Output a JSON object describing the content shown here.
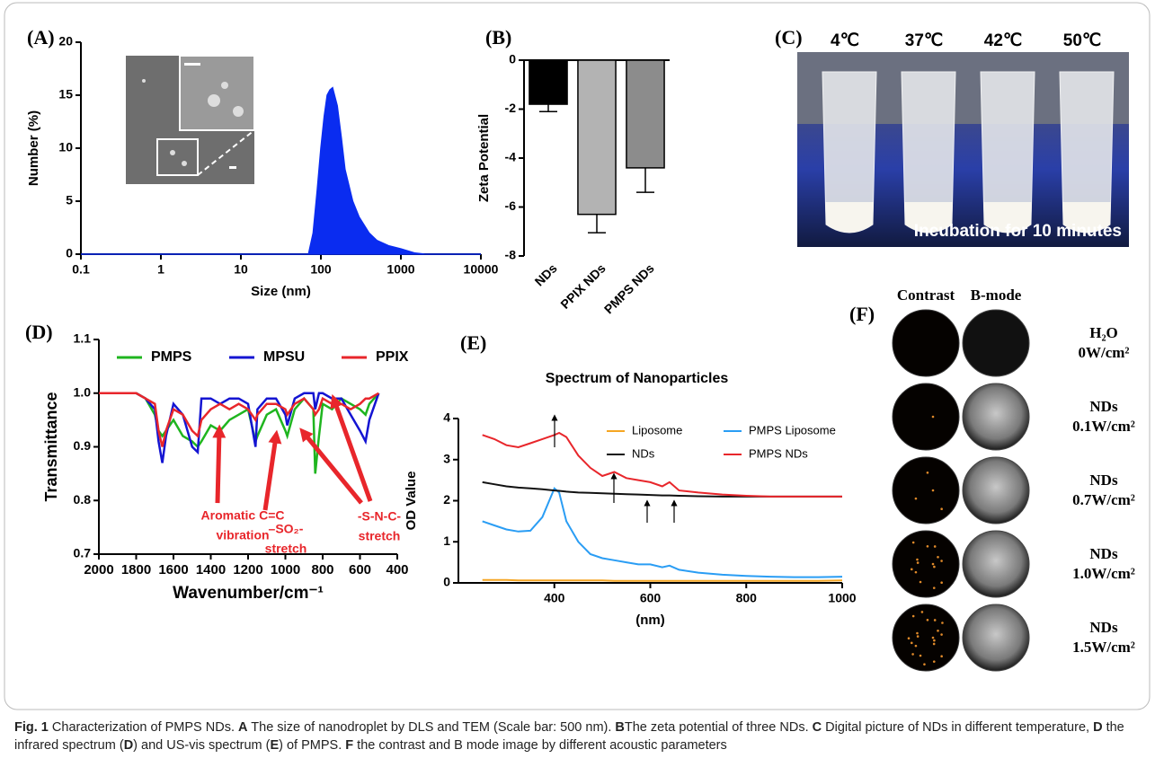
{
  "chart_data": [
    {
      "type": "area",
      "panel": "(A)",
      "xlabel": "Size (nm)",
      "ylabel": "Number (%)",
      "xscale": "log",
      "color": "#0a2cf0",
      "x": [
        0.1,
        70,
        80,
        90,
        100,
        110,
        120,
        130,
        140,
        160,
        180,
        200,
        250,
        300,
        400,
        500,
        700,
        1000,
        1500,
        2000,
        10000
      ],
      "values": [
        0,
        0,
        2,
        6,
        10,
        13,
        15,
        15.5,
        15.7,
        14,
        11,
        8,
        5,
        3.5,
        2,
        1.3,
        0.8,
        0.5,
        0.1,
        0,
        0
      ],
      "xlim": [
        0.1,
        10000
      ],
      "xticks": [
        0.1,
        1,
        10,
        100,
        1000,
        10000
      ],
      "ylim": [
        0,
        20
      ],
      "yticks": [
        0,
        5,
        10,
        15,
        20
      ]
    },
    {
      "type": "bar",
      "panel": "(B)",
      "ylabel": "Zeta Potential",
      "categories": [
        "NDs",
        "PPIX NDs",
        "PMPS NDs"
      ],
      "values": [
        -1.8,
        -6.3,
        -4.4
      ],
      "errors": [
        0.3,
        0.75,
        1.0
      ],
      "colors": [
        "#000000",
        "#b3b3b3",
        "#8c8c8c"
      ],
      "ylim": [
        -8,
        0
      ],
      "yticks": [
        0,
        -2,
        -4,
        -6,
        -8
      ]
    },
    {
      "type": "line",
      "panel": "(D)",
      "xlabel": "Wavenumber/cm⁻¹",
      "ylabel": "Transmittance",
      "legend": "top",
      "x": [
        2000,
        1900,
        1800,
        1750,
        1700,
        1680,
        1660,
        1640,
        1600,
        1550,
        1500,
        1470,
        1450,
        1400,
        1350,
        1300,
        1250,
        1200,
        1160,
        1150,
        1100,
        1050,
        1000,
        990,
        950,
        900,
        850,
        840,
        820,
        800,
        750,
        700,
        650,
        600,
        570,
        550,
        500
      ],
      "series": [
        {
          "name": "PMPS",
          "color": "#1fb51f",
          "values": [
            1,
            1,
            1,
            0.99,
            0.96,
            0.93,
            0.92,
            0.93,
            0.95,
            0.92,
            0.91,
            0.9,
            0.91,
            0.94,
            0.93,
            0.95,
            0.96,
            0.97,
            0.91,
            0.92,
            0.96,
            0.97,
            0.93,
            0.92,
            0.97,
            0.99,
            0.97,
            0.85,
            0.92,
            0.98,
            0.97,
            0.99,
            0.98,
            0.97,
            0.96,
            0.98,
            1
          ]
        },
        {
          "name": "MPSU",
          "color": "#1414d2",
          "values": [
            1,
            1,
            1,
            0.99,
            0.97,
            0.91,
            0.87,
            0.92,
            0.98,
            0.96,
            0.9,
            0.89,
            0.99,
            0.99,
            0.98,
            0.99,
            0.99,
            0.98,
            0.9,
            0.97,
            0.99,
            0.99,
            0.96,
            0.94,
            0.99,
            1,
            1,
            0.97,
            1,
            1,
            0.99,
            0.99,
            0.96,
            0.93,
            0.91,
            0.95,
            1
          ]
        },
        {
          "name": "PPIX",
          "color": "#e8262b",
          "values": [
            1,
            1,
            1,
            0.99,
            0.98,
            0.93,
            0.9,
            0.93,
            0.97,
            0.96,
            0.93,
            0.92,
            0.95,
            0.97,
            0.98,
            0.97,
            0.98,
            0.97,
            0.95,
            0.96,
            0.98,
            0.98,
            0.97,
            0.96,
            0.98,
            0.99,
            0.97,
            0.96,
            0.97,
            0.99,
            0.98,
            0.98,
            0.97,
            0.98,
            0.99,
            0.99,
            1
          ]
        }
      ],
      "xlim": [
        2000,
        400
      ],
      "xticks": [
        2000,
        1800,
        1600,
        1400,
        1200,
        1000,
        800,
        600,
        400
      ],
      "ylim": [
        0.7,
        1.1
      ],
      "yticks": [
        0.7,
        0.8,
        0.9,
        {
          "value": 1,
          "label": "1.0"
        },
        1.1
      ],
      "annotations": [
        [
          "Aromatic C=C",
          "vibration"
        ],
        [
          "–SO₂-",
          "stretch"
        ],
        [
          "-S-N-C-",
          "stretch"
        ]
      ]
    },
    {
      "type": "line",
      "panel": "(E)",
      "title": "Spectrum of  Nanoparticles",
      "xlabel": "(nm)",
      "ylabel": "OD Value",
      "legend": "upper right",
      "x": [
        250,
        275,
        300,
        325,
        350,
        375,
        400,
        410,
        425,
        450,
        475,
        500,
        525,
        550,
        575,
        600,
        625,
        640,
        660,
        700,
        750,
        800,
        850,
        900,
        950,
        1000
      ],
      "series": [
        {
          "name": "Liposome",
          "color": "#f5a623",
          "values": [
            0.07,
            0.07,
            0.07,
            0.06,
            0.06,
            0.06,
            0.06,
            0.06,
            0.06,
            0.06,
            0.06,
            0.06,
            0.05,
            0.05,
            0.05,
            0.05,
            0.05,
            0.05,
            0.05,
            0.05,
            0.05,
            0.05,
            0.05,
            0.05,
            0.05,
            0.06
          ]
        },
        {
          "name": "PMPS Liposome",
          "color": "#2a9df4",
          "values": [
            1.5,
            1.4,
            1.3,
            1.25,
            1.27,
            1.6,
            2.3,
            2.2,
            1.5,
            1,
            0.7,
            0.6,
            0.55,
            0.5,
            0.45,
            0.45,
            0.38,
            0.42,
            0.32,
            0.25,
            0.2,
            0.17,
            0.15,
            0.14,
            0.14,
            0.15
          ]
        },
        {
          "name": "NDs",
          "color": "#111111",
          "values": [
            2.45,
            2.4,
            2.35,
            2.32,
            2.3,
            2.28,
            2.25,
            2.24,
            2.22,
            2.2,
            2.19,
            2.18,
            2.17,
            2.16,
            2.15,
            2.14,
            2.13,
            2.13,
            2.12,
            2.11,
            2.1,
            2.1,
            2.1,
            2.1,
            2.1,
            2.1
          ]
        },
        {
          "name": "PMPS NDs",
          "color": "#e8262b",
          "values": [
            3.6,
            3.5,
            3.35,
            3.3,
            3.4,
            3.5,
            3.6,
            3.65,
            3.55,
            3.1,
            2.8,
            2.6,
            2.7,
            2.55,
            2.5,
            2.45,
            2.35,
            2.45,
            2.25,
            2.2,
            2.15,
            2.12,
            2.1,
            2.1,
            2.1,
            2.1
          ]
        }
      ],
      "xlim": [
        200,
        1000
      ],
      "xticks": [
        400,
        600,
        800,
        1000
      ],
      "ylim": [
        0,
        4
      ],
      "yticks": [
        0,
        1,
        2,
        3,
        4
      ]
    }
  ],
  "photo": {
    "panel": "(C)",
    "temperatures": [
      "4℃",
      "37℃",
      "42℃",
      "50℃"
    ],
    "caption": "Incubation for 10 minutes"
  },
  "images": {
    "panel": "(F)",
    "columns": [
      "Contrast",
      "B-mode"
    ],
    "rows": [
      [
        "H₂O",
        "0W/cm²"
      ],
      [
        "NDs",
        "0.1W/cm²"
      ],
      [
        "NDs",
        "0.7W/cm²"
      ],
      [
        "NDs",
        "1.0W/cm²"
      ],
      [
        "NDs",
        "1.5W/cm²"
      ]
    ]
  },
  "caption": {
    "label": "Fig. 1",
    "parts": [
      " Characterization of PMPS NDs. ",
      {
        "text": "A",
        "bold": true
      },
      " The size of nanodroplet by DLS and TEM (Scale bar: 500 nm). ",
      {
        "text": "B",
        "bold": true
      },
      "The zeta potential of three NDs. ",
      {
        "text": "C",
        "bold": true
      },
      " Digital picture of NDs in different temperature, ",
      {
        "text": "D",
        "bold": true
      },
      " the infrared spectrum (",
      {
        "text": "D",
        "bold": true
      },
      ") and US-vis spectrum (",
      {
        "text": "E",
        "bold": true
      },
      ") of PMPS. ",
      {
        "text": "F",
        "bold": true
      },
      " the contrast and B mode image by different acoustic parameters"
    ]
  }
}
